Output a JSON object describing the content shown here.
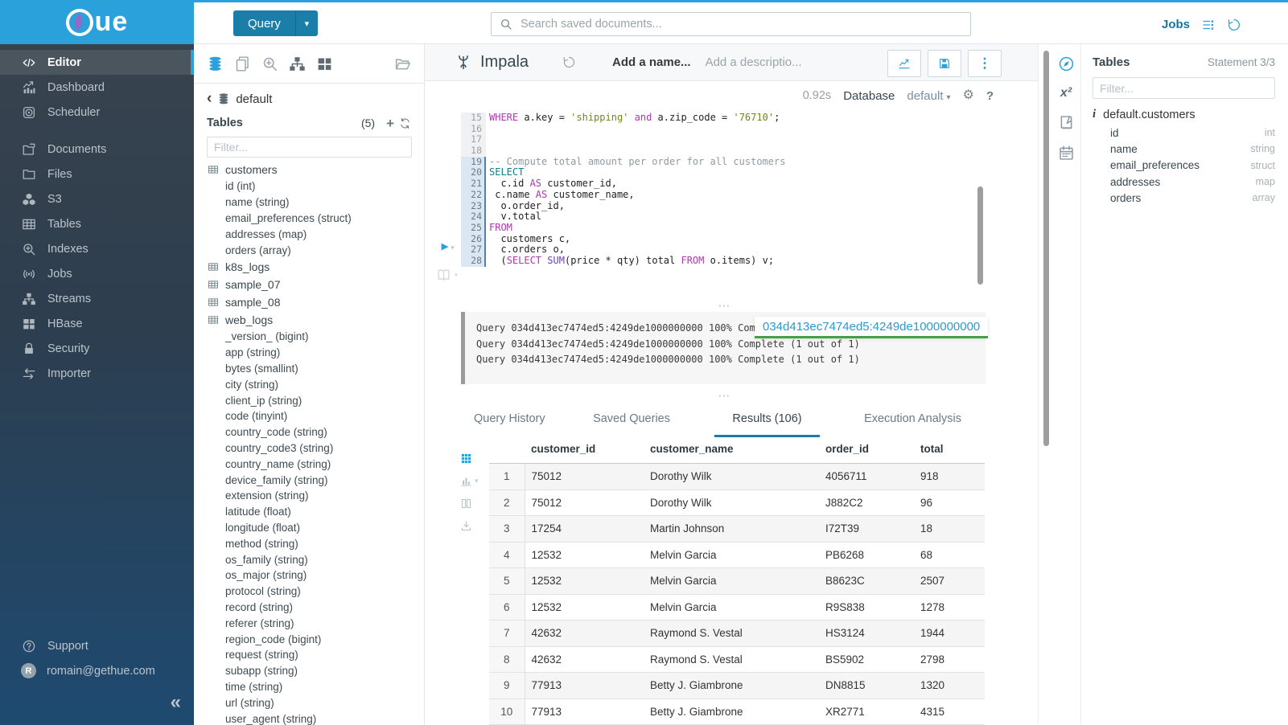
{
  "brand": {
    "logo_text": "ue"
  },
  "colors": {
    "accent": "#2ba0dc",
    "logo_bg": "#2aa1db",
    "query_button": "#1b7ea8",
    "tab_underline": "#1d7ba6",
    "tooltip_underline": "#43a047",
    "sidebar_top": "#3a434d",
    "sidebar_bottom": "#1e4a70"
  },
  "icon_glyphs": {
    "play": "▶",
    "caret-down": "▾",
    "ellipsis": "⋮",
    "gear": "⚙",
    "question": "?",
    "info": "i",
    "collapse": "«",
    "chevron-left": "‹",
    "plus": "+",
    "handle": "⋯",
    "x2": "x²"
  },
  "topbar": {
    "query_button": "Query",
    "search_placeholder": "Search saved documents...",
    "jobs_label": "Jobs"
  },
  "sidebar": {
    "items": [
      {
        "label": "Editor",
        "icon": "code",
        "active": true
      },
      {
        "label": "Dashboard",
        "icon": "dashboard"
      },
      {
        "label": "Scheduler",
        "icon": "scheduler"
      },
      {
        "label": "Documents",
        "icon": "docs",
        "gap": true
      },
      {
        "label": "Files",
        "icon": "folder"
      },
      {
        "label": "S3",
        "icon": "s3"
      },
      {
        "label": "Tables",
        "icon": "tables"
      },
      {
        "label": "Indexes",
        "icon": "zoomplus"
      },
      {
        "label": "Jobs",
        "icon": "broadcast"
      },
      {
        "label": "Streams",
        "icon": "sitemap"
      },
      {
        "label": "HBase",
        "icon": "grid4"
      },
      {
        "label": "Security",
        "icon": "lock"
      },
      {
        "label": "Importer",
        "icon": "importer"
      }
    ],
    "footer": [
      {
        "label": "Support",
        "icon": "support"
      },
      {
        "label": "romain@gethue.com",
        "icon": "avatar",
        "avatar_letter": "R"
      }
    ]
  },
  "assist": {
    "breadcrumb_db": "default",
    "tables_label": "Tables",
    "tables_count": "(5)",
    "filter_placeholder": "Filter...",
    "tree": [
      {
        "label": "customers",
        "kind": "table"
      },
      {
        "label": "id (int)",
        "kind": "column"
      },
      {
        "label": "name (string)",
        "kind": "column"
      },
      {
        "label": "email_preferences (struct)",
        "kind": "column"
      },
      {
        "label": "addresses (map)",
        "kind": "column"
      },
      {
        "label": "orders (array)",
        "kind": "column"
      },
      {
        "label": "k8s_logs",
        "kind": "table"
      },
      {
        "label": "sample_07",
        "kind": "table"
      },
      {
        "label": "sample_08",
        "kind": "table"
      },
      {
        "label": "web_logs",
        "kind": "table"
      },
      {
        "label": "_version_ (bigint)",
        "kind": "column"
      },
      {
        "label": "app (string)",
        "kind": "column"
      },
      {
        "label": "bytes (smallint)",
        "kind": "column"
      },
      {
        "label": "city (string)",
        "kind": "column"
      },
      {
        "label": "client_ip (string)",
        "kind": "column"
      },
      {
        "label": "code (tinyint)",
        "kind": "column"
      },
      {
        "label": "country_code (string)",
        "kind": "column"
      },
      {
        "label": "country_code3 (string)",
        "kind": "column"
      },
      {
        "label": "country_name (string)",
        "kind": "column"
      },
      {
        "label": "device_family (string)",
        "kind": "column"
      },
      {
        "label": "extension (string)",
        "kind": "column"
      },
      {
        "label": "latitude (float)",
        "kind": "column"
      },
      {
        "label": "longitude (float)",
        "kind": "column"
      },
      {
        "label": "method (string)",
        "kind": "column"
      },
      {
        "label": "os_family (string)",
        "kind": "column"
      },
      {
        "label": "os_major (string)",
        "kind": "column"
      },
      {
        "label": "protocol (string)",
        "kind": "column"
      },
      {
        "label": "record (string)",
        "kind": "column"
      },
      {
        "label": "referer (string)",
        "kind": "column"
      },
      {
        "label": "region_code (bigint)",
        "kind": "column"
      },
      {
        "label": "request (string)",
        "kind": "column"
      },
      {
        "label": "subapp (string)",
        "kind": "column"
      },
      {
        "label": "time (string)",
        "kind": "column"
      },
      {
        "label": "url (string)",
        "kind": "column"
      },
      {
        "label": "user_agent (string)",
        "kind": "column"
      }
    ]
  },
  "editor": {
    "engine": "Impala",
    "name_placeholder": "Add a name...",
    "description_placeholder": "Add a descriptio...",
    "exec_time": "0.92s",
    "database_label": "Database",
    "database_value": "default",
    "lines": [
      {
        "no": "15",
        "active": false,
        "tokens": [
          [
            "k",
            "WHERE"
          ],
          [
            "p",
            " a.key = "
          ],
          [
            "s",
            "'shipping'"
          ],
          [
            "p",
            " "
          ],
          [
            "k",
            "and"
          ],
          [
            "p",
            " a.zip_code = "
          ],
          [
            "s",
            "'76710'"
          ],
          [
            "p",
            ";"
          ]
        ]
      },
      {
        "no": "16",
        "active": false,
        "tokens": []
      },
      {
        "no": "17",
        "active": false,
        "tokens": []
      },
      {
        "no": "18",
        "active": false,
        "tokens": []
      },
      {
        "no": "19",
        "active": true,
        "tokens": [
          [
            "c",
            "-- Compute total amount per order for all customers"
          ]
        ]
      },
      {
        "no": "20",
        "active": true,
        "tokens": [
          [
            "t",
            "SELECT"
          ]
        ]
      },
      {
        "no": "21",
        "active": true,
        "tokens": [
          [
            "p",
            "  c.id "
          ],
          [
            "k",
            "AS"
          ],
          [
            "p",
            " customer_id,"
          ]
        ]
      },
      {
        "no": "22",
        "active": true,
        "tokens": [
          [
            "p",
            " c.name "
          ],
          [
            "k",
            "AS"
          ],
          [
            "p",
            " customer_name,"
          ]
        ]
      },
      {
        "no": "23",
        "active": true,
        "tokens": [
          [
            "p",
            "  o.order_id,"
          ]
        ]
      },
      {
        "no": "24",
        "active": true,
        "tokens": [
          [
            "p",
            "  v.total"
          ]
        ]
      },
      {
        "no": "25",
        "active": true,
        "tokens": [
          [
            "k",
            "FROM"
          ]
        ]
      },
      {
        "no": "26",
        "active": true,
        "tokens": [
          [
            "p",
            "  customers c,"
          ]
        ]
      },
      {
        "no": "27",
        "active": true,
        "tokens": [
          [
            "p",
            "  c.orders o,"
          ]
        ]
      },
      {
        "no": "28",
        "active": true,
        "tokens": [
          [
            "p",
            "  ("
          ],
          [
            "k",
            "SELECT"
          ],
          [
            "p",
            " "
          ],
          [
            "f",
            "SUM"
          ],
          [
            "p",
            "(price * qty) total "
          ],
          [
            "k",
            "FROM"
          ],
          [
            "p",
            " o.items) v;"
          ]
        ]
      }
    ]
  },
  "log": {
    "lines": [
      "Query 034d413ec7474ed5:4249de1000000000 100% Complete (1 out of 1)",
      "Query 034d413ec7474ed5:4249de1000000000 100% Complete (1 out of 1)",
      "Query 034d413ec7474ed5:4249de1000000000 100% Complete (1 out of 1)"
    ],
    "tooltip": "034d413ec7474ed5:4249de1000000000"
  },
  "tabs": [
    {
      "label": "Query History",
      "active": false
    },
    {
      "label": "Saved Queries",
      "active": false
    },
    {
      "label": "Results (106)",
      "active": true
    },
    {
      "label": "Execution Analysis",
      "active": false
    }
  ],
  "results": {
    "columns": [
      "customer_id",
      "customer_name",
      "order_id",
      "total"
    ],
    "rows": [
      [
        "1",
        "75012",
        "Dorothy Wilk",
        "4056711",
        "918"
      ],
      [
        "2",
        "75012",
        "Dorothy Wilk",
        "J882C2",
        "96"
      ],
      [
        "3",
        "17254",
        "Martin Johnson",
        "I72T39",
        "18"
      ],
      [
        "4",
        "12532",
        "Melvin Garcia",
        "PB6268",
        "68"
      ],
      [
        "5",
        "12532",
        "Melvin Garcia",
        "B8623C",
        "2507"
      ],
      [
        "6",
        "12532",
        "Melvin Garcia",
        "R9S838",
        "1278"
      ],
      [
        "7",
        "42632",
        "Raymond S. Vestal",
        "HS3124",
        "1944"
      ],
      [
        "8",
        "42632",
        "Raymond S. Vestal",
        "BS5902",
        "2798"
      ],
      [
        "9",
        "77913",
        "Betty J. Giambrone",
        "DN8815",
        "1320"
      ],
      [
        "10",
        "77913",
        "Betty J. Giambrone",
        "XR2771",
        "4315"
      ]
    ]
  },
  "right_panel": {
    "title": "Tables",
    "statement": "Statement 3/3",
    "filter_placeholder": "Filter...",
    "table_name": "default.customers",
    "columns": [
      {
        "name": "id",
        "type": "int"
      },
      {
        "name": "name",
        "type": "string"
      },
      {
        "name": "email_preferences",
        "type": "struct"
      },
      {
        "name": "addresses",
        "type": "map"
      },
      {
        "name": "orders",
        "type": "array"
      }
    ]
  }
}
